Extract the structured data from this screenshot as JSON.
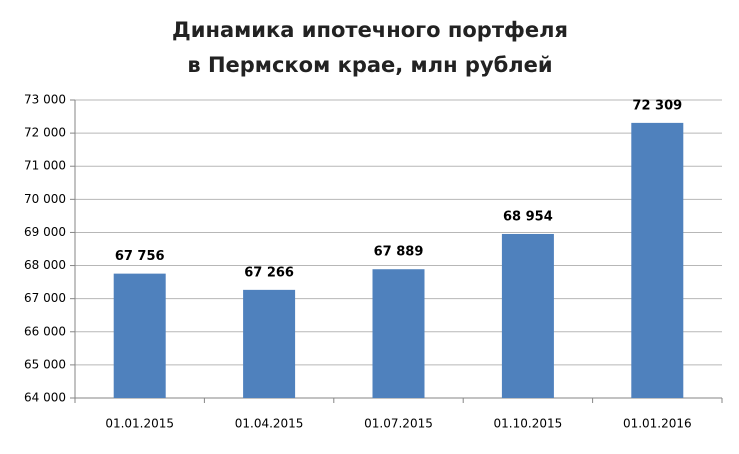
{
  "chart_data": {
    "type": "bar",
    "title": [
      "Динамика ипотечного портфеля",
      "в Пермском крае, млн рублей"
    ],
    "categories": [
      "01.01.2015",
      "01.04.2015",
      "01.07.2015",
      "01.10.2015",
      "01.01.2016"
    ],
    "values": [
      67756,
      67266,
      67889,
      68954,
      72309
    ],
    "value_labels": [
      "67 756",
      "67 266",
      "67 889",
      "68 954",
      "72 309"
    ],
    "color": "#4f81bd",
    "ylim": [
      64000,
      73000
    ],
    "yticks": [
      {
        "value": 64000,
        "label": "64 000"
      },
      {
        "value": 65000,
        "label": "65 000"
      },
      {
        "value": 66000,
        "label": "66 000"
      },
      {
        "value": 67000,
        "label": "67 000"
      },
      {
        "value": 68000,
        "label": "68 000"
      },
      {
        "value": 69000,
        "label": "69 000"
      },
      {
        "value": 70000,
        "label": "70 000"
      },
      {
        "value": 71000,
        "label": "71 000"
      },
      {
        "value": 72000,
        "label": "72 000"
      },
      {
        "value": 73000,
        "label": "73 000"
      }
    ],
    "grid": true
  }
}
